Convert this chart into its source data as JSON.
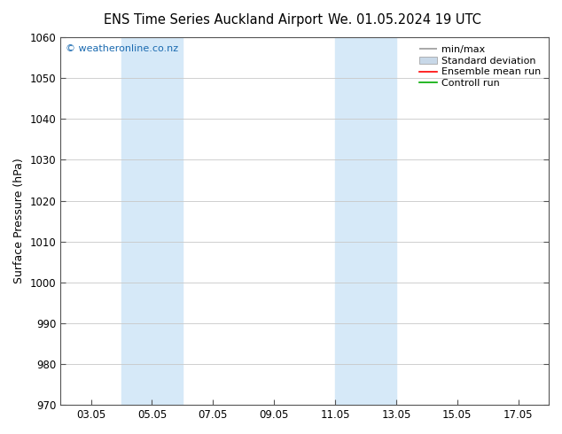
{
  "title_left": "ENS Time Series Auckland Airport",
  "title_right": "We. 01.05.2024 19 UTC",
  "ylabel": "Surface Pressure (hPa)",
  "ylim": [
    970,
    1060
  ],
  "yticks": [
    970,
    980,
    990,
    1000,
    1010,
    1020,
    1030,
    1040,
    1050,
    1060
  ],
  "xtick_labels": [
    "03.05",
    "05.05",
    "07.05",
    "09.05",
    "11.05",
    "13.05",
    "15.05",
    "17.05"
  ],
  "xtick_positions": [
    3,
    5,
    7,
    9,
    11,
    13,
    15,
    17
  ],
  "xlim": [
    2.0,
    18.0
  ],
  "shade_bands": [
    {
      "x_start": 4.0,
      "x_end": 6.0,
      "color": "#d6e9f8"
    },
    {
      "x_start": 11.0,
      "x_end": 13.0,
      "color": "#d6e9f8"
    }
  ],
  "watermark": "© weatheronline.co.nz",
  "watermark_color": "#1a6ab0",
  "legend_labels": [
    "min/max",
    "Standard deviation",
    "Ensemble mean run",
    "Controll run"
  ],
  "legend_line_colors": [
    "#999999",
    "#c8d8e8",
    "#ff0000",
    "#00aa00"
  ],
  "bg_color": "#ffffff",
  "grid_color": "#c8c8c8",
  "title_fontsize": 10.5,
  "ylabel_fontsize": 9,
  "tick_fontsize": 8.5,
  "legend_fontsize": 8
}
